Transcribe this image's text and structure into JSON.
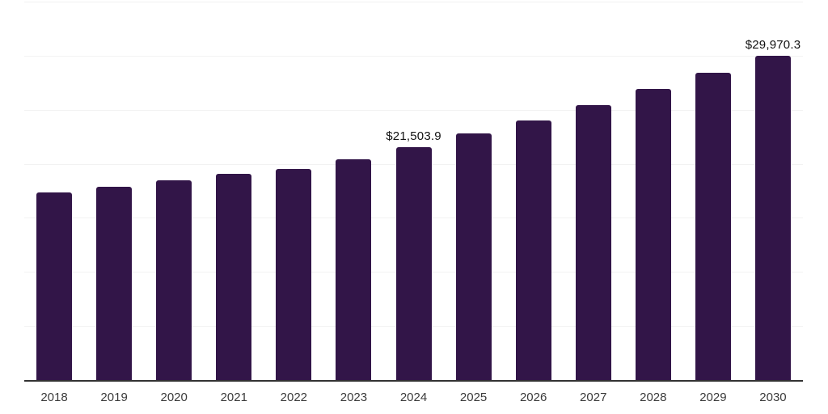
{
  "chart_data": {
    "type": "bar",
    "title": "",
    "xlabel": "",
    "ylabel": "",
    "categories": [
      "2018",
      "2019",
      "2020",
      "2021",
      "2022",
      "2023",
      "2024",
      "2025",
      "2026",
      "2027",
      "2028",
      "2029",
      "2030"
    ],
    "values": [
      17350,
      17900,
      18450,
      19100,
      19550,
      20400,
      21503.9,
      22800,
      24000,
      25400,
      26900,
      28420,
      29970.3
    ],
    "data_labels": {
      "2024": "$21,503.9",
      "2030": "$29,970.3"
    },
    "ylim": [
      0,
      35000
    ],
    "gridline_step": 5000,
    "grid": "horizontal",
    "legend": "none"
  },
  "colors": {
    "background": "#ffffff",
    "bar": "#321548",
    "gridline": "#f2f2f2",
    "axis_line": "#333333",
    "tick_label": "#3b3b3b",
    "data_label": "#111111"
  }
}
